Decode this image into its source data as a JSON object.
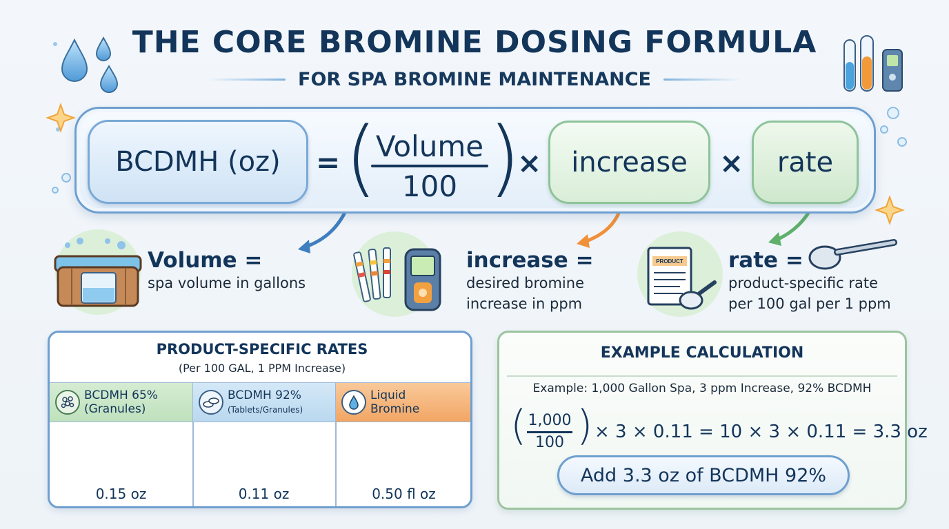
{
  "header": {
    "title": "THE CORE BROMINE DOSING FORMULA",
    "subtitle": "FOR SPA BROMINE MAINTENANCE"
  },
  "formula": {
    "lhs": "BCDMH (oz)",
    "equals": "=",
    "numerator": "Volume",
    "denominator": "100",
    "times": "×",
    "term_increase": "increase",
    "term_rate": "rate"
  },
  "definitions": [
    {
      "term": "Volume =",
      "line1": "spa volume in gallons",
      "line2": ""
    },
    {
      "term": "increase =",
      "line1": "desired bromine",
      "line2": "increase in ppm"
    },
    {
      "term": "rate =",
      "line1": "product-specific rate",
      "line2": "per 100 gal per 1 ppm",
      "label": "PRODUCT"
    }
  ],
  "rates": {
    "title": "PRODUCT-SPECIFIC RATES",
    "subtitle": "(Per 100 GAL, 1 PPM Increase)",
    "products": [
      {
        "name": "BCDMH 65%",
        "detail": "(Granules)",
        "value": "0.15 oz"
      },
      {
        "name": "BCDMH 92%",
        "detail": "(Tablets/Granules)",
        "value": "0.11 oz"
      },
      {
        "name": "Liquid",
        "detail": "Bromine",
        "value": "0.50 fl oz"
      }
    ]
  },
  "example": {
    "title": "EXAMPLE CALCULATION",
    "scenario": "Example: 1,000 Gallon Spa, 3 ppm Increase, 92% BCDMH",
    "numerator": "1,000",
    "denominator": "100",
    "calc_rest": "× 3 × 0.11 = 10 × 3 × 0.11 = 3.3 oz",
    "result": "Add 3.3 oz of BCDMH 92%"
  },
  "colors": {
    "navy": "#13355a",
    "blue_border": "#6f9fcf",
    "green_border": "#8fc39a",
    "orange_header": "#f2a664"
  }
}
